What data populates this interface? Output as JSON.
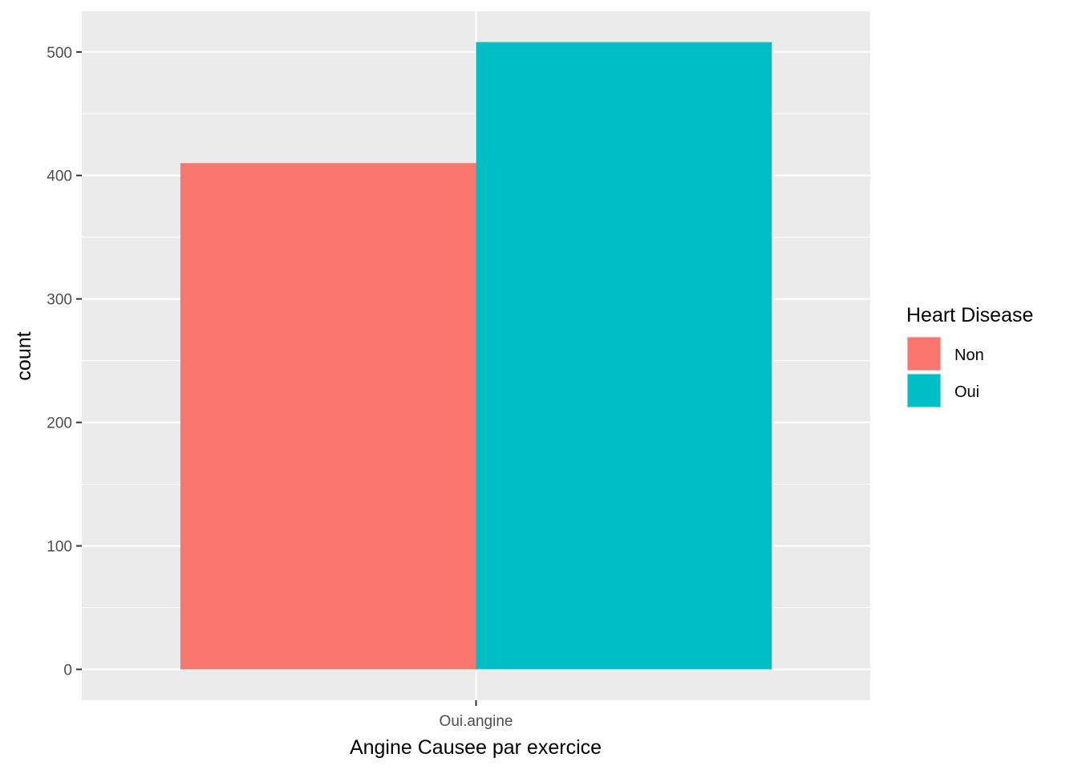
{
  "chart_data": {
    "type": "bar",
    "title": "",
    "xlabel": "Angine Causee par exercice",
    "ylabel": "count",
    "categories": [
      "Oui.angine"
    ],
    "series": [
      {
        "name": "Non",
        "values": [
          410
        ],
        "color": "#F8766D"
      },
      {
        "name": "Oui",
        "values": [
          508
        ],
        "color": "#00BFC4"
      }
    ],
    "ylim": [
      -25,
      533
    ],
    "yticks": [
      0,
      100,
      200,
      300,
      400,
      500
    ],
    "yticks_labels": [
      "0",
      "100",
      "200",
      "300",
      "400",
      "500"
    ],
    "legend": {
      "title": "Heart Disease",
      "position": "right"
    },
    "grid": true,
    "colors": {
      "panel": "#EBEBEB",
      "grid": "#FFFFFF"
    }
  }
}
